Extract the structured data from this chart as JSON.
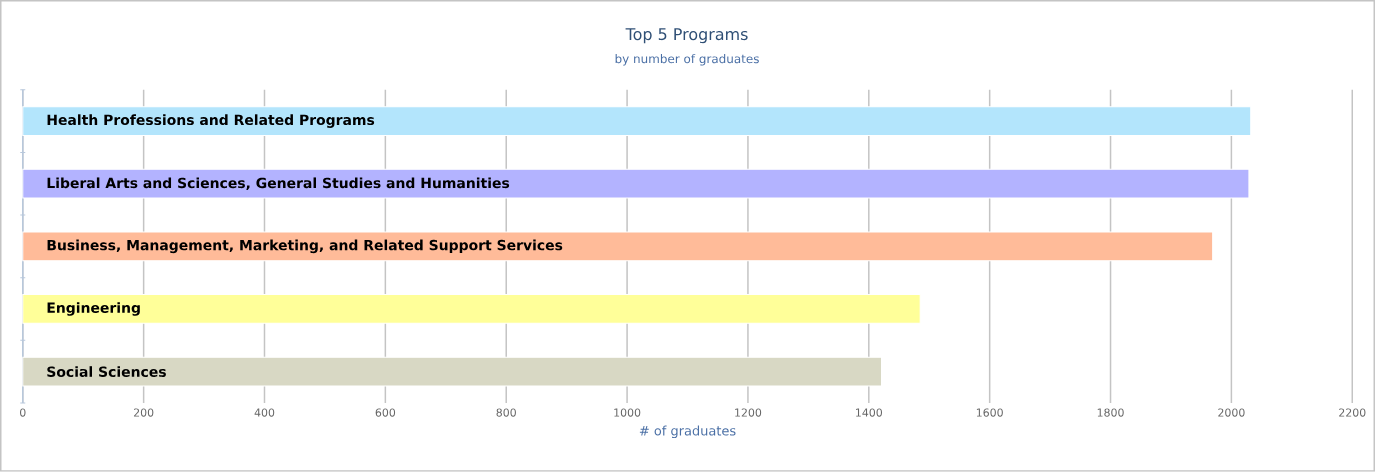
{
  "chart_data": {
    "type": "bar",
    "orientation": "horizontal",
    "title": "Top 5 Programs",
    "subtitle": "by number of graduates",
    "xlabel": "# of graduates",
    "categories": [
      "Health Professions and Related Programs",
      "Liberal Arts and Sciences, General Studies and Humanities",
      "Business, Management, Marketing, and Related Support Services",
      "Engineering",
      "Social Sciences"
    ],
    "values": [
      2032,
      2029,
      1969,
      1485,
      1421
    ],
    "colors": [
      "#b3e5fc",
      "#b3b3ff",
      "#ffbb99",
      "#ffff99",
      "#d8d8c4"
    ],
    "xlim": [
      0,
      2200
    ],
    "xticks": [
      0,
      200,
      400,
      600,
      800,
      1000,
      1200,
      1400,
      1600,
      1800,
      2000,
      2200
    ],
    "grid": "x"
  }
}
